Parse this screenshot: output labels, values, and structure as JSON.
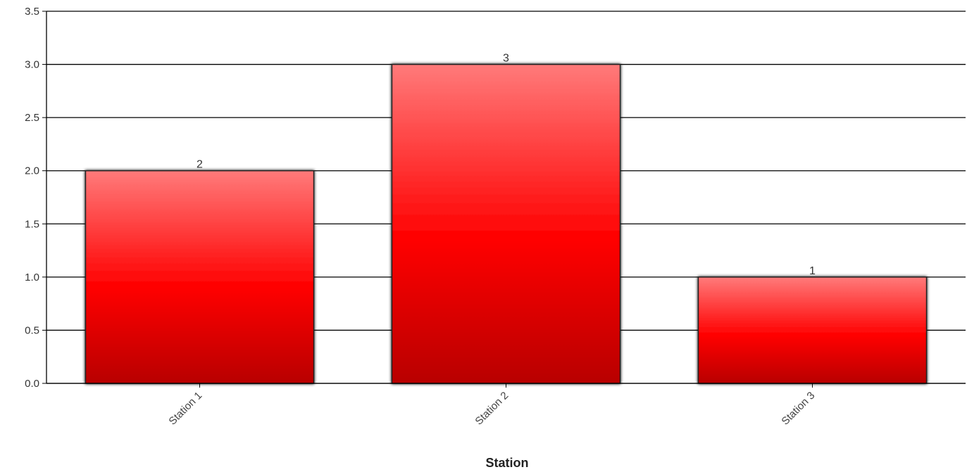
{
  "chart_data": {
    "type": "bar",
    "categories": [
      "Station 1",
      "Station 2",
      "Station 3"
    ],
    "values": [
      2,
      3,
      1
    ],
    "data_labels": [
      "2",
      "3",
      "1"
    ],
    "title": "",
    "xlabel": "Station",
    "ylabel": "",
    "ylim": [
      0,
      3.5
    ],
    "yticks": [
      0.0,
      0.5,
      1.0,
      1.5,
      2.0,
      2.5,
      3.0,
      3.5
    ],
    "ytick_labels": [
      "0.0",
      "0.5",
      "1.0",
      "1.5",
      "2.0",
      "2.5",
      "3.0",
      "3.5"
    ],
    "grid": true,
    "legend": "none",
    "colors": {
      "bar_top": "#ff7a7a",
      "bar_mid": "#ff0000",
      "bar_bottom": "#b80000",
      "bar_stroke": "#222222",
      "grid": "#000000"
    }
  }
}
